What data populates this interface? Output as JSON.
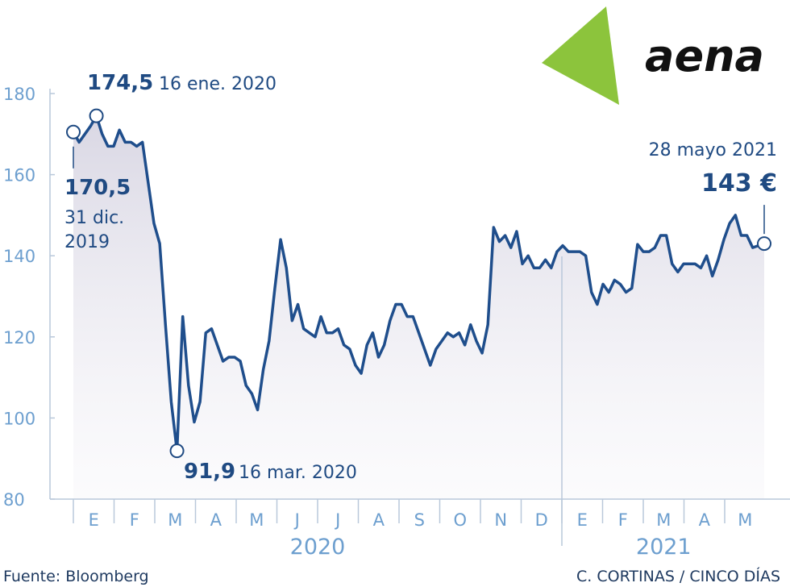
{
  "chart_data": {
    "type": "line",
    "values": [
      170.5,
      168,
      170,
      172,
      174.5,
      170,
      167,
      167,
      171,
      168,
      168,
      167,
      168,
      158,
      148,
      143,
      123,
      104,
      91.9,
      125,
      108,
      99,
      104,
      121,
      122,
      118,
      114,
      115,
      115,
      114,
      108,
      106,
      102,
      112,
      119,
      132,
      144,
      137,
      124,
      128,
      122,
      121,
      120,
      125,
      121,
      121,
      122,
      118,
      117,
      113,
      111,
      118,
      121,
      115,
      118,
      124,
      128,
      128,
      125,
      125,
      121,
      117,
      113,
      117,
      119,
      121,
      120,
      121,
      118,
      123,
      119,
      116,
      123,
      147,
      143.5,
      145,
      142,
      146,
      138,
      140,
      137,
      137,
      139,
      137,
      141,
      142.5,
      141,
      141,
      141,
      140,
      131,
      128,
      133,
      131,
      134,
      133,
      131,
      132,
      142.8,
      141,
      141,
      142,
      145,
      145,
      138,
      136,
      138,
      138,
      138,
      137,
      140,
      135,
      139,
      144,
      148,
      150,
      145,
      145,
      142,
      142.5,
      143
    ],
    "color": "#1f4e8c",
    "ylim": [
      80,
      180
    ],
    "yticks": [
      80,
      100,
      120,
      140,
      160,
      180
    ],
    "months": [
      "E",
      "F",
      "M",
      "A",
      "M",
      "J",
      "J",
      "A",
      "S",
      "O",
      "N",
      "D",
      "E",
      "F",
      "M",
      "A",
      "M"
    ],
    "years": [
      "2020",
      "2021"
    ],
    "annotations": [
      {
        "value": 170.5,
        "label": "170,5",
        "date": "31 dic. 2019"
      },
      {
        "value": 174.5,
        "label": "174,5",
        "date": "16 ene. 2020"
      },
      {
        "value": 91.9,
        "label": "91,9",
        "date": "16 mar. 2020"
      },
      {
        "value": 143,
        "label": "143 €",
        "date": "28 mayo 2021"
      }
    ],
    "source": "Fuente: Bloomberg",
    "credit": "C. CORTINAS / CINCO DÍAS",
    "logo": "aena"
  }
}
